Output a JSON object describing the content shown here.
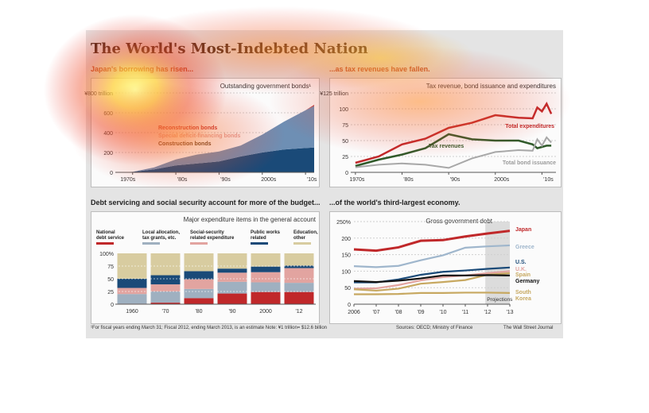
{
  "title": "The World's Most-Indebted Nation",
  "colors": {
    "national": "#c0282a",
    "local": "#9fb0c0",
    "social": "#e2a4a0",
    "public": "#1a4a78",
    "education": "#d8cca0",
    "japan": "#c0282a",
    "greece": "#9fb6cc",
    "us": "#1a4a78",
    "uk": "#e2a4a0",
    "spain": "#c7a860",
    "germany": "#111111",
    "south_korea": "#c7a860"
  },
  "panels": {
    "p1": {
      "subtitle": "Japan's borrowing has risen...",
      "chart_title": "Outstanding government bonds¹"
    },
    "p2": {
      "subtitle": "...as tax revenues have fallen.",
      "chart_title": "Tax revenue, bond issuance and expenditures"
    },
    "p3": {
      "subtitle": "Debt servicing and social security account for more of the budget...",
      "chart_title": "Major expenditure items in the general account"
    },
    "p4": {
      "subtitle": "...of the world's third-largest economy.",
      "chart_title": "Gross government debt"
    }
  },
  "footer": {
    "note": "¹For fiscal years ending March 31; Fiscal 2012, ending March 2013, is an estimate   Note: ¥1 trillion= $12.6 billion",
    "sources": "Sources: OECD; Ministry of Finance",
    "credit": "The Wall Street Journal"
  },
  "chart_data": [
    {
      "type": "area",
      "title": "Outstanding government bonds¹",
      "ylim": [
        0,
        800
      ],
      "y_ticks": [
        "0",
        "200",
        "400",
        "600",
        "¥800 trillion"
      ],
      "x_tick_labels": [
        "1970s",
        "'80s",
        "'90s",
        "2000s",
        "'10s"
      ],
      "x": [
        1966,
        1970,
        1975,
        1980,
        1985,
        1990,
        1995,
        2000,
        2005,
        2010,
        2012
      ],
      "series": [
        {
          "name": "Construction bonds",
          "values": [
            0,
            5,
            30,
            70,
            90,
            110,
            160,
            200,
            230,
            245,
            250
          ]
        },
        {
          "name": "Special deficit-financing bonds",
          "values": [
            0,
            0,
            20,
            60,
            90,
            100,
            110,
            180,
            280,
            380,
            420
          ]
        },
        {
          "name": "Reconstruction bonds",
          "values": [
            0,
            0,
            0,
            0,
            0,
            0,
            0,
            0,
            0,
            0,
            10
          ]
        }
      ]
    },
    {
      "type": "line",
      "title": "Tax revenue, bond issuance and expenditures",
      "ylim": [
        0,
        125
      ],
      "y_ticks": [
        "0",
        "25",
        "50",
        "75",
        "100",
        "¥125 trillion"
      ],
      "x_tick_labels": [
        "1970s",
        "'80s",
        "'90s",
        "2000s",
        "'10s"
      ],
      "x": [
        1970,
        1975,
        1980,
        1985,
        1990,
        1995,
        2000,
        2005,
        2008,
        2009,
        2010,
        2011,
        2012
      ],
      "series": [
        {
          "name": "Total expenditures",
          "values": [
            15,
            25,
            44,
            53,
            70,
            78,
            90,
            86,
            85,
            102,
            96,
            108,
            92
          ]
        },
        {
          "name": "Tax revenues",
          "values": [
            10,
            20,
            28,
            38,
            60,
            52,
            50,
            50,
            44,
            38,
            40,
            42,
            42
          ]
        },
        {
          "name": "Total bond issuance",
          "values": [
            8,
            12,
            14,
            12,
            7,
            22,
            32,
            35,
            34,
            52,
            42,
            55,
            47
          ]
        }
      ]
    },
    {
      "type": "bar",
      "title": "Major expenditure items in the general account",
      "ylim": [
        0,
        100
      ],
      "y_ticks": [
        "0",
        "25",
        "50",
        "75",
        "100%"
      ],
      "categories": [
        "1960",
        "'70",
        "'80",
        "'90",
        "2000",
        "'12"
      ],
      "series": [
        {
          "name": "National debt service",
          "values": [
            1,
            3,
            12,
            21,
            24,
            24
          ]
        },
        {
          "name": "Local allocation, tax grants, etc.",
          "values": [
            19,
            22,
            18,
            23,
            19,
            18
          ]
        },
        {
          "name": "Social-security related expenditure",
          "values": [
            12,
            14,
            19,
            18,
            20,
            29
          ]
        },
        {
          "name": "Public works related",
          "values": [
            18,
            18,
            16,
            8,
            11,
            5
          ]
        },
        {
          "name": "Education, other",
          "values": [
            50,
            43,
            35,
            30,
            26,
            24
          ]
        }
      ]
    },
    {
      "type": "line",
      "title": "Gross government debt",
      "ylim": [
        0,
        250
      ],
      "y_ticks": [
        "0",
        "50",
        "100",
        "150",
        "200",
        "250%"
      ],
      "x": [
        "2006",
        "'07",
        "'08",
        "'09",
        "'10",
        "'11",
        "'12",
        "'13"
      ],
      "annotation": "Projections",
      "series": [
        {
          "name": "Japan",
          "values": [
            166,
            162,
            172,
            192,
            194,
            205,
            214,
            222
          ]
        },
        {
          "name": "Greece",
          "values": [
            115,
            112,
            116,
            133,
            148,
            171,
            175,
            178
          ]
        },
        {
          "name": "U.S.",
          "values": [
            66,
            66,
            75,
            89,
            98,
            102,
            107,
            111
          ]
        },
        {
          "name": "U.K.",
          "values": [
            47,
            48,
            58,
            72,
            82,
            87,
            94,
            100
          ]
        },
        {
          "name": "Spain",
          "values": [
            45,
            41,
            47,
            62,
            67,
            73,
            89,
            94
          ]
        },
        {
          "name": "Germany",
          "values": [
            70,
            67,
            71,
            78,
            87,
            87,
            88,
            87
          ]
        },
        {
          "name": "South Korea",
          "values": [
            30,
            30,
            31,
            34,
            34,
            35,
            35,
            34
          ]
        }
      ]
    }
  ]
}
